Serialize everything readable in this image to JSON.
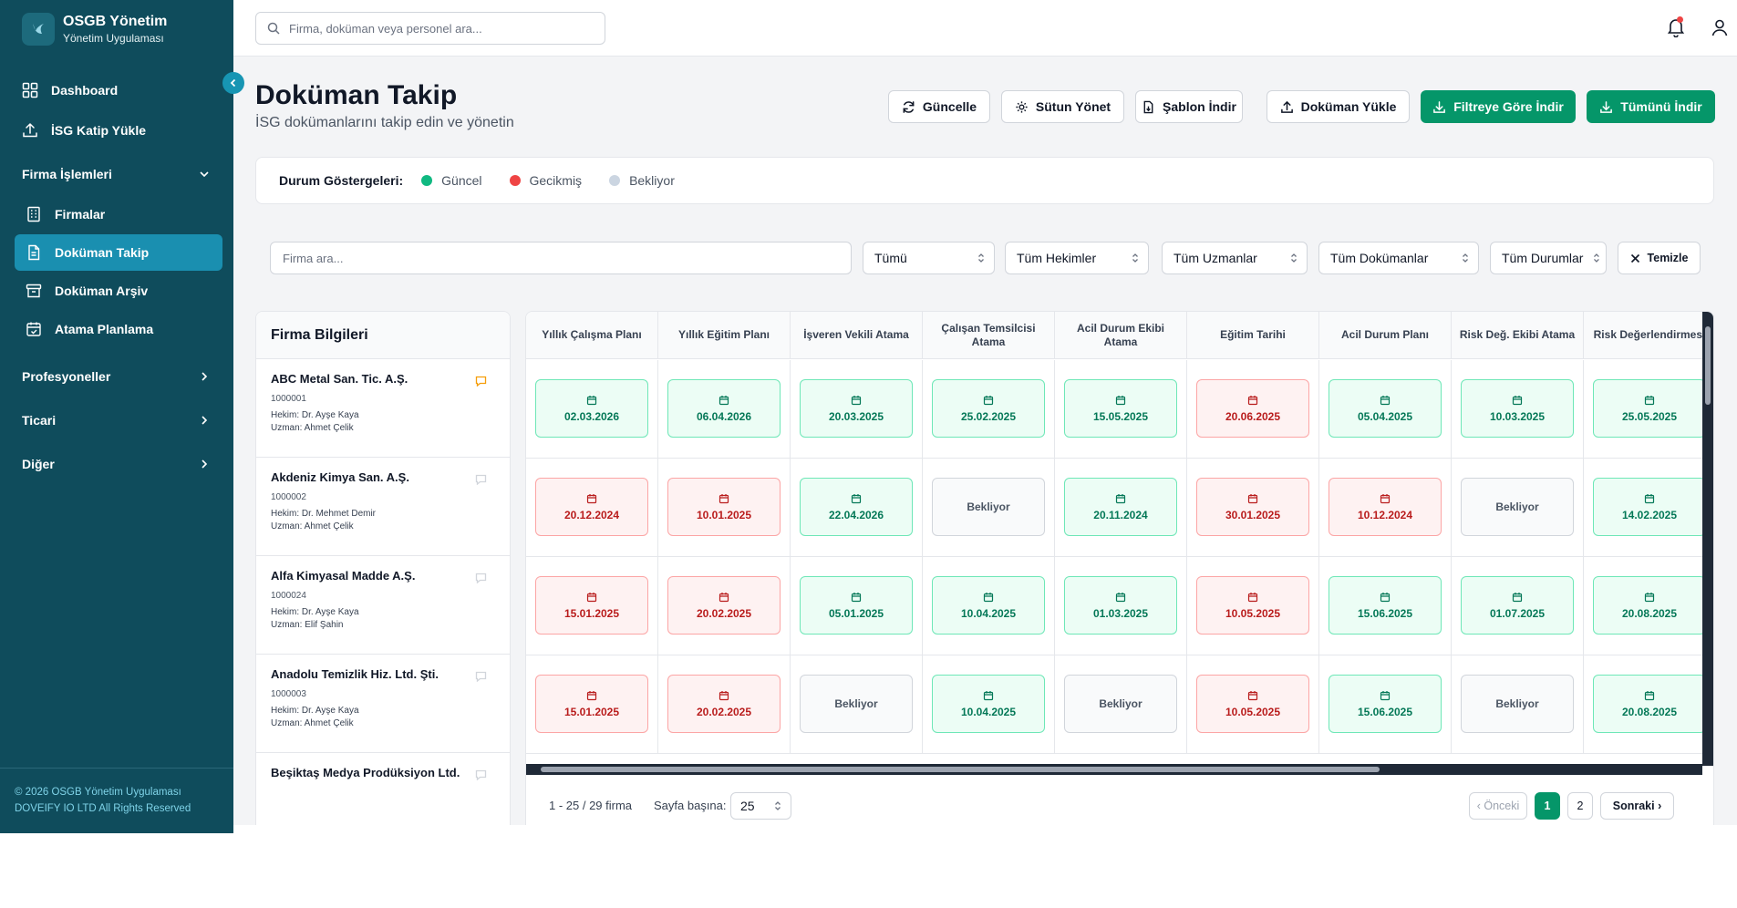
{
  "brand": {
    "title": "OSGB Yönetim",
    "subtitle": "Yönetim Uygulaması"
  },
  "sidebar": {
    "items": [
      {
        "label": "Dashboard"
      },
      {
        "label": "İSG Katip Yükle"
      }
    ],
    "group_firma": "Firma İşlemleri",
    "firma_items": [
      {
        "label": "Firmalar"
      },
      {
        "label": "Doküman Takip"
      },
      {
        "label": "Doküman Arşiv"
      },
      {
        "label": "Atama Planlama"
      }
    ],
    "groups": [
      {
        "label": "Profesyoneller"
      },
      {
        "label": "Ticari"
      },
      {
        "label": "Diğer"
      }
    ],
    "footer_line1": "© 2026 OSGB Yönetim Uygulaması",
    "footer_line2": "DOVEIFY IO LTD All Rights Reserved"
  },
  "topbar": {
    "search_placeholder": "Firma, doküman veya personel ara..."
  },
  "page": {
    "title": "Doküman Takip",
    "subtitle": "İSG dokümanlarını takip edin ve yönetin"
  },
  "actions": {
    "refresh": "Güncelle",
    "columns": "Sütun Yönet",
    "template": "Şablon İndir",
    "upload": "Doküman Yükle",
    "download_filtered": "Filtreye Göre İndir",
    "download_all": "Tümünü İndir"
  },
  "legend": {
    "label": "Durum Göstergeleri:",
    "items": [
      {
        "label": "Güncel",
        "color": "#10b981"
      },
      {
        "label": "Gecikmiş",
        "color": "#ef4444"
      },
      {
        "label": "Bekliyor",
        "color": "#cbd5e1"
      }
    ]
  },
  "filters": {
    "search_placeholder": "Firma ara...",
    "all": "Tümü",
    "doctors": "Tüm Hekimler",
    "specialists": "Tüm Uzmanlar",
    "documents": "Tüm Dokümanlar",
    "statuses": "Tüm Durumlar",
    "clear": "Temizle"
  },
  "firm_panel": {
    "header": "Firma Bilgileri",
    "firms": [
      {
        "name": "ABC Metal San. Tic. A.Ş.",
        "code": "1000001",
        "doctor": "Hekim: Dr. Ayşe Kaya",
        "specialist": "Uzman: Ahmet Çelik"
      },
      {
        "name": "Akdeniz Kimya San. A.Ş.",
        "code": "1000002",
        "doctor": "Hekim: Dr. Mehmet Demir",
        "specialist": "Uzman: Ahmet Çelik"
      },
      {
        "name": "Alfa Kimyasal Madde A.Ş.",
        "code": "1000024",
        "doctor": "Hekim: Dr. Ayşe Kaya",
        "specialist": "Uzman: Elif Şahin"
      },
      {
        "name": "Anadolu Temizlik Hiz. Ltd. Şti.",
        "code": "1000003",
        "doctor": "Hekim: Dr. Ayşe Kaya",
        "specialist": "Uzman: Ahmet Çelik"
      },
      {
        "name": "Beşiktaş Medya Prodüksiyon Ltd.",
        "code": "",
        "doctor": "",
        "specialist": ""
      }
    ]
  },
  "grid": {
    "columns": [
      "Yıllık Çalışma Planı",
      "Yıllık Eğitim Planı",
      "İşveren Vekili Atama",
      "Çalışan Temsilcisi Atama",
      "Acil Durum Ekibi Atama",
      "Eğitim Tarihi",
      "Acil Durum Planı",
      "Risk Değ. Ekibi Atama",
      "Risk Değerlendirmesi"
    ],
    "rows": [
      [
        {
          "s": "g",
          "v": "02.03.2026"
        },
        {
          "s": "g",
          "v": "06.04.2026"
        },
        {
          "s": "g",
          "v": "20.03.2025"
        },
        {
          "s": "g",
          "v": "25.02.2025"
        },
        {
          "s": "g",
          "v": "15.05.2025"
        },
        {
          "s": "r",
          "v": "20.06.2025"
        },
        {
          "s": "g",
          "v": "05.04.2025"
        },
        {
          "s": "g",
          "v": "10.03.2025"
        },
        {
          "s": "g",
          "v": "25.05.2025"
        }
      ],
      [
        {
          "s": "r",
          "v": "20.12.2024"
        },
        {
          "s": "r",
          "v": "10.01.2025"
        },
        {
          "s": "g",
          "v": "22.04.2026"
        },
        {
          "s": "p",
          "v": "Bekliyor"
        },
        {
          "s": "g",
          "v": "20.11.2024"
        },
        {
          "s": "r",
          "v": "30.01.2025"
        },
        {
          "s": "r",
          "v": "10.12.2024"
        },
        {
          "s": "p",
          "v": "Bekliyor"
        },
        {
          "s": "g",
          "v": "14.02.2025"
        }
      ],
      [
        {
          "s": "r",
          "v": "15.01.2025"
        },
        {
          "s": "r",
          "v": "20.02.2025"
        },
        {
          "s": "g",
          "v": "05.01.2025"
        },
        {
          "s": "g",
          "v": "10.04.2025"
        },
        {
          "s": "g",
          "v": "01.03.2025"
        },
        {
          "s": "r",
          "v": "10.05.2025"
        },
        {
          "s": "g",
          "v": "15.06.2025"
        },
        {
          "s": "g",
          "v": "01.07.2025"
        },
        {
          "s": "g",
          "v": "20.08.2025"
        }
      ],
      [
        {
          "s": "r",
          "v": "15.01.2025"
        },
        {
          "s": "r",
          "v": "20.02.2025"
        },
        {
          "s": "p",
          "v": "Bekliyor"
        },
        {
          "s": "g",
          "v": "10.04.2025"
        },
        {
          "s": "p",
          "v": "Bekliyor"
        },
        {
          "s": "r",
          "v": "10.05.2025"
        },
        {
          "s": "g",
          "v": "15.06.2025"
        },
        {
          "s": "p",
          "v": "Bekliyor"
        },
        {
          "s": "g",
          "v": "20.08.2025"
        }
      ]
    ]
  },
  "pagination": {
    "info": "1 - 25 / 29 firma",
    "per_page_label": "Sayfa başına:",
    "per_page": "25",
    "prev": "Önceki",
    "pages": [
      "1",
      "2"
    ],
    "next": "Sonraki"
  }
}
